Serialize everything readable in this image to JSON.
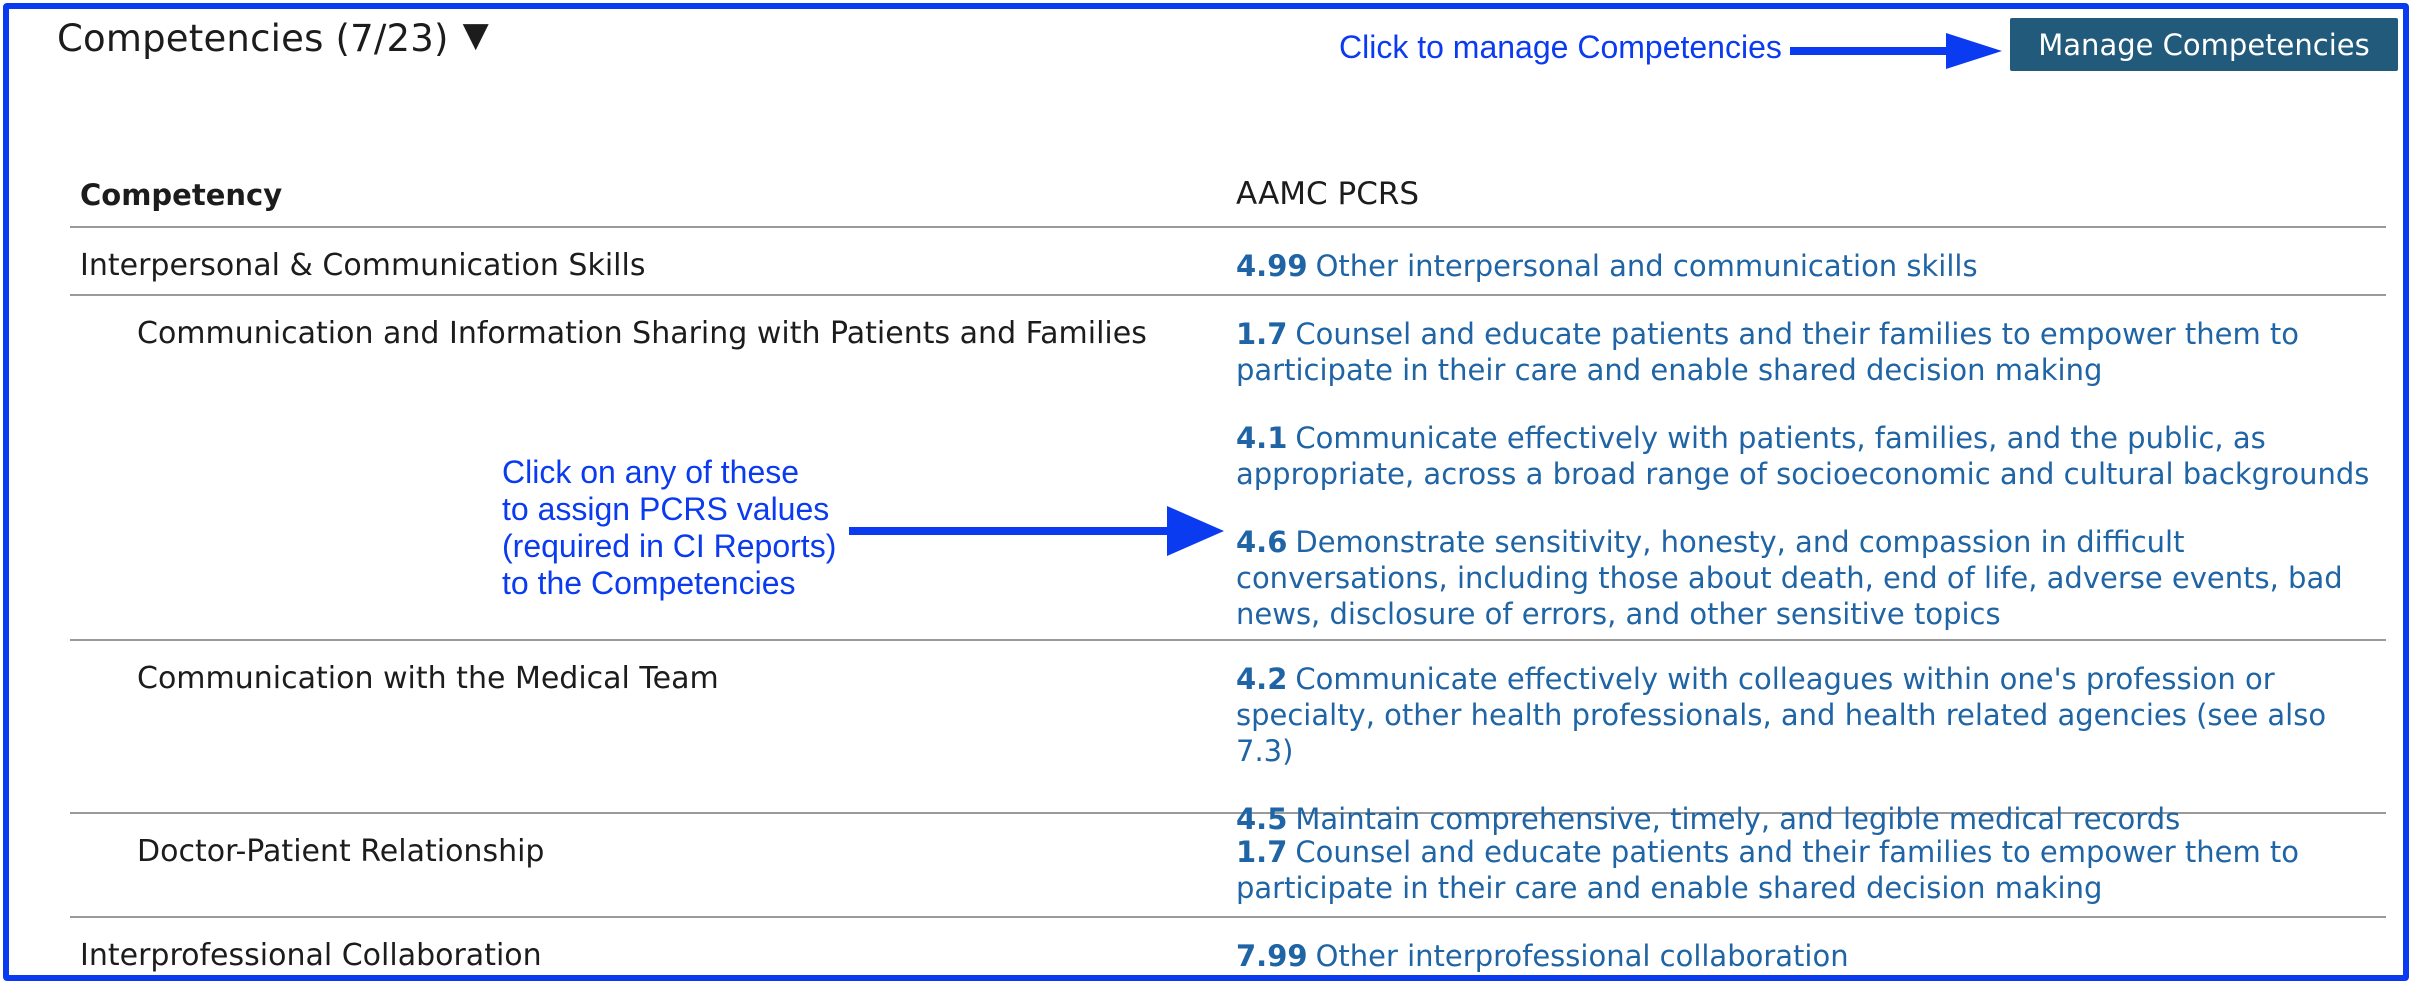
{
  "header": {
    "title": "Competencies (7/23)",
    "caret": "▼",
    "manage_button": "Manage Competencies"
  },
  "annotations": {
    "top_callout": "Click to manage Competencies",
    "mid_callout_lines": [
      "Click on any of these",
      "to assign PCRS values",
      "(required in CI Reports)",
      "to the Competencies"
    ],
    "color": "#0b3bf0"
  },
  "table": {
    "headers": [
      "Competency",
      "AAMC PCRS"
    ],
    "rows": [
      {
        "competency": "Interpersonal & Communication Skills",
        "indent": false,
        "pcrs": [
          {
            "code": "4.99",
            "text": "Other interpersonal and communication skills"
          }
        ]
      },
      {
        "competency": "Communication and Information Sharing with Patients and Families",
        "indent": true,
        "pcrs": [
          {
            "code": "1.7",
            "text": "Counsel and educate patients and their families to empower them to participate in their care and enable shared decision making"
          },
          {
            "code": "4.1",
            "text": "Communicate effectively with patients, families, and the public, as appropriate, across a broad range of socioeconomic and cultural backgrounds"
          },
          {
            "code": "4.6",
            "text": "Demonstrate sensitivity, honesty, and compassion in difficult conversations, including those about death, end of life, adverse events, bad news, disclosure of errors, and other sensitive topics"
          }
        ]
      },
      {
        "competency": "Communication with the Medical Team",
        "indent": true,
        "pcrs": [
          {
            "code": "4.2",
            "text": "Communicate effectively with colleagues within one's profession or specialty, other health professionals, and health related agencies (see also 7.3)"
          },
          {
            "code": "4.5",
            "text": "Maintain comprehensive, timely, and legible medical records"
          }
        ]
      },
      {
        "competency": "Doctor-Patient Relationship",
        "indent": true,
        "pcrs": [
          {
            "code": "1.7",
            "text": "Counsel and educate patients and their families to empower them to participate in their care and enable shared decision making"
          }
        ]
      },
      {
        "competency": "Interprofessional Collaboration",
        "indent": false,
        "pcrs": [
          {
            "code": "7.99",
            "text": "Other interprofessional collaboration"
          }
        ]
      }
    ]
  },
  "colors": {
    "button_bg": "#225a7c",
    "link": "#1f64a5",
    "frame": "#0b3bf0"
  }
}
